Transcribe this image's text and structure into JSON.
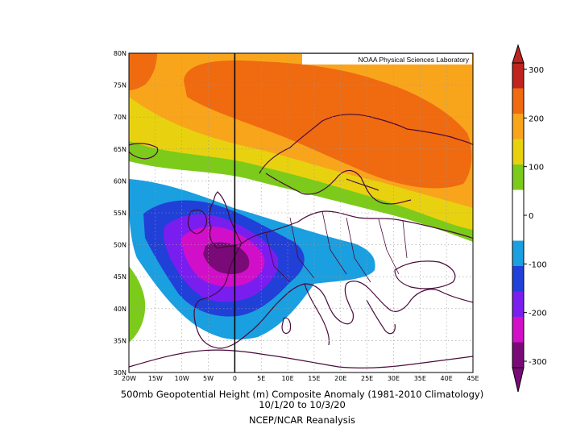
{
  "credit": "NOAA Physical Sciences Laboratory",
  "caption": {
    "line1": "500mb Geopotential Height (m) Composite Anomaly (1981-2010 Climatology)",
    "line2": "10/1/20  to 10/3/20",
    "line3": "NCEP/NCAR Reanalysis"
  },
  "axes": {
    "lat_labels": [
      "80N",
      "75N",
      "70N",
      "65N",
      "60N",
      "55N",
      "50N",
      "45N",
      "40N",
      "35N",
      "30N"
    ],
    "lon_labels": [
      "20W",
      "15W",
      "10W",
      "5W",
      "0",
      "5E",
      "10E",
      "15E",
      "20E",
      "25E",
      "30E",
      "35E",
      "40E",
      "45E"
    ],
    "lat_range": [
      30,
      80
    ],
    "lon_range": [
      -20,
      45
    ],
    "grid": true
  },
  "colorbar": {
    "labels": [
      "300",
      "200",
      "100",
      "0",
      "-100",
      "-200",
      "-300"
    ],
    "colors": [
      "#c0241f",
      "#f06a10",
      "#f9a51c",
      "#e8d210",
      "#7ccb1a",
      "#ffffff",
      "#ffffff",
      "#1a9fe0",
      "#2040d8",
      "#7a1ef0",
      "#d20fc8",
      "#7a0a78"
    ]
  },
  "contour_colors": {
    "pos_300": "#f06a10",
    "pos_200": "#f9a51c",
    "pos_150": "#e8d210",
    "pos_100": "#7ccb1a",
    "neg_50": "#1a9fe0",
    "neg_100": "#2040d8",
    "neg_150": "#7a1ef0",
    "neg_200": "#d20fc8",
    "neg_250": "#7a0a78",
    "coast": "#4a0a3a"
  }
}
